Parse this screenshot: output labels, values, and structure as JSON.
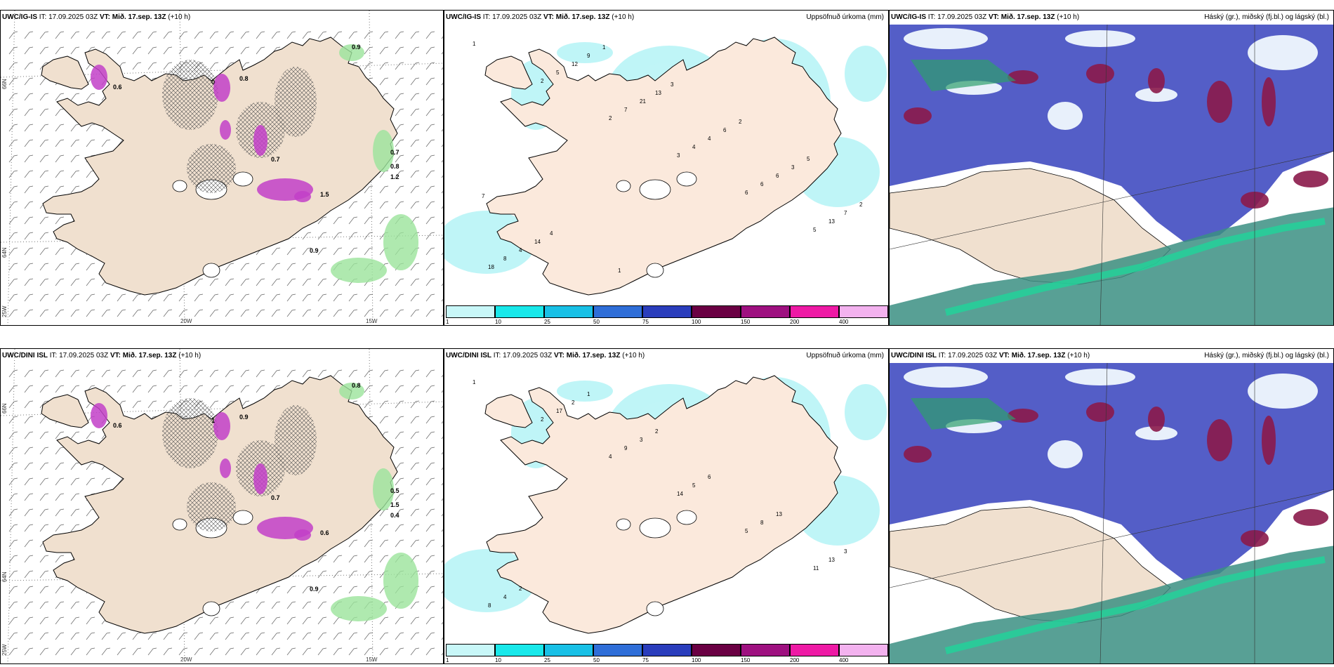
{
  "rows": [
    {
      "model": "UWC/IG-IS",
      "issue": "IT: 17.09.2025 03Z",
      "valid": "VT: Mið. 17.sep. 13Z",
      "lead": "(+10 h)",
      "precip_title": "Uppsöfnuð úrkoma (mm)",
      "cloud_title": "Háský (gr.), miðský (fj.bl.) og lágský (bl.)",
      "wind_values": [
        "0.6",
        "0",
        "0.8",
        "0.7",
        "0.9",
        "0.7",
        "0.8",
        "1.5",
        "0.9",
        "1.2"
      ],
      "precip_values": [
        "1",
        "2",
        "2",
        "3",
        "6",
        "5",
        "18",
        "5",
        "7",
        "4",
        "6",
        "13",
        "8",
        "12",
        "21",
        "4",
        "6",
        "7",
        "4",
        "9",
        "13",
        "6",
        "3",
        "2",
        "14",
        "1",
        "3",
        "2",
        "5",
        "7",
        "4",
        "1"
      ]
    },
    {
      "model": "UWC/DINI ISL",
      "issue": "IT: 17.09.2025 03Z",
      "valid": "VT: Mið. 17.sep. 13Z",
      "lead": "(+10 h)",
      "precip_title": "Uppsöfnuð úrkoma (mm)",
      "cloud_title": "Háský (gr.), miðský (fj.bl.) og lágský (bl.)",
      "wind_values": [
        "0.6",
        "1",
        "0.9",
        "0.7",
        "0.8",
        "0.5",
        "1.5",
        "0.6",
        "0.9",
        "0.4"
      ],
      "precip_values": [
        "1",
        "2",
        "4",
        "14",
        "5",
        "11",
        "8",
        "17",
        "9",
        "5",
        "8",
        "13",
        "4",
        "2",
        "3",
        "6",
        "13",
        "3",
        "2",
        "1",
        "2"
      ]
    }
  ],
  "axes": {
    "lon_labels": [
      "20W",
      "15W"
    ],
    "lat_labels": [
      "66N",
      "64N"
    ],
    "lon_left": "25W"
  },
  "colorbar": {
    "ticks": [
      "1",
      "10",
      "25",
      "50",
      "75",
      "100",
      "150",
      "200",
      "400"
    ],
    "colors": [
      "#c8f7f8",
      "#19e8ea",
      "#18c0e6",
      "#2f6ed8",
      "#2a3dbc",
      "#6a0043",
      "#9e1080",
      "#ee1aa5",
      "#f3b2ef"
    ]
  }
}
